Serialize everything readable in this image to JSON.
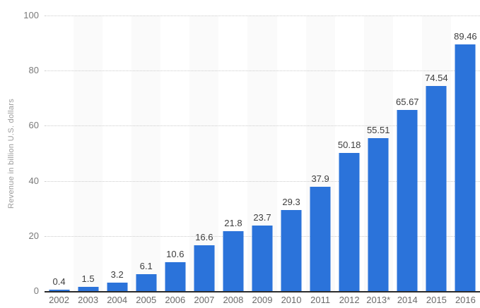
{
  "chart_data": {
    "type": "bar",
    "title": "",
    "categories": [
      "2002",
      "2003",
      "2004",
      "2005",
      "2006",
      "2007",
      "2008",
      "2009",
      "2010",
      "2011",
      "2012",
      "2013*",
      "2014",
      "2015",
      "2016"
    ],
    "values": [
      0.4,
      1.5,
      3.2,
      6.1,
      10.6,
      16.6,
      21.8,
      23.7,
      29.3,
      37.9,
      50.18,
      55.51,
      65.67,
      74.54,
      89.46
    ],
    "value_labels": [
      "0.4",
      "1.5",
      "3.2",
      "6.1",
      "10.6",
      "16.6",
      "21.8",
      "23.7",
      "29.3",
      "37.9",
      "50.18",
      "55.51",
      "65.67",
      "74.54",
      "89.46"
    ],
    "xlabel": "",
    "ylabel": "Revenue in billion U.S. dollars",
    "ylim": [
      0,
      100
    ],
    "yticks": [
      0,
      20,
      40,
      60,
      80,
      100
    ],
    "grid": "horizontal-dotted",
    "legend": null,
    "stripe_pattern": "alternate columns shaded starting with second column",
    "colors": {
      "bar": "#2b73da",
      "stripe": "#fafafa",
      "gridline": "#cccccc",
      "axis_line": "#2b2b2b",
      "y_tick_label": "#7a7a7a",
      "x_tick_label": "#6b6b6b",
      "value_label": "#3d3d3d",
      "axis_title": "#9b9b9b",
      "background": "#ffffff"
    }
  }
}
